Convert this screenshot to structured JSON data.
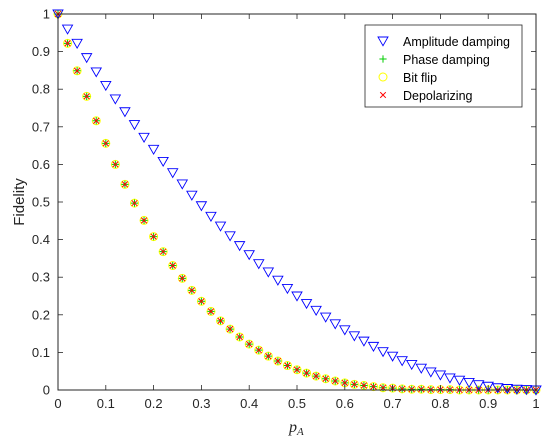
{
  "chart_data": {
    "type": "scatter",
    "title": "",
    "xlabel": "p",
    "xlabel_sub": "A",
    "ylabel": "Fidelity",
    "xlim": [
      0,
      1
    ],
    "ylim": [
      0,
      1
    ],
    "xticks": [
      "0",
      "0.1",
      "0.2",
      "0.3",
      "0.4",
      "0.5",
      "0.6",
      "0.7",
      "0.8",
      "0.9",
      "1"
    ],
    "yticks": [
      "0",
      "0.1",
      "0.2",
      "0.3",
      "0.4",
      "0.5",
      "0.6",
      "0.7",
      "0.8",
      "0.9",
      "1"
    ],
    "grid": false,
    "legend_position": "top-right",
    "x": [
      0,
      0.02,
      0.04,
      0.06,
      0.08,
      0.1,
      0.12,
      0.14,
      0.16,
      0.18,
      0.2,
      0.22,
      0.24,
      0.26,
      0.28,
      0.3,
      0.32,
      0.34,
      0.36,
      0.38,
      0.4,
      0.42,
      0.44,
      0.46,
      0.48,
      0.5,
      0.52,
      0.54,
      0.56,
      0.58,
      0.6,
      0.62,
      0.64,
      0.66,
      0.68,
      0.7,
      0.72,
      0.74,
      0.76,
      0.78,
      0.8,
      0.82,
      0.84,
      0.86,
      0.88,
      0.9,
      0.92,
      0.94,
      0.96,
      0.98,
      1
    ],
    "series": [
      {
        "name": "Amplitude damping",
        "marker": "triangle-down",
        "color": "#0000ff",
        "values": [
          1,
          0.96,
          0.922,
          0.884,
          0.846,
          0.81,
          0.774,
          0.74,
          0.706,
          0.672,
          0.64,
          0.608,
          0.578,
          0.548,
          0.518,
          0.49,
          0.462,
          0.436,
          0.41,
          0.384,
          0.36,
          0.336,
          0.314,
          0.292,
          0.27,
          0.25,
          0.23,
          0.212,
          0.194,
          0.176,
          0.16,
          0.144,
          0.13,
          0.116,
          0.102,
          0.09,
          0.078,
          0.068,
          0.058,
          0.048,
          0.04,
          0.032,
          0.026,
          0.02,
          0.014,
          0.01,
          0.006,
          0.004,
          0.002,
          0.001,
          0
        ]
      },
      {
        "name": "Phase damping",
        "marker": "plus",
        "color": "#00cc00",
        "values": [
          1,
          0.922,
          0.849,
          0.781,
          0.716,
          0.656,
          0.6,
          0.547,
          0.497,
          0.451,
          0.408,
          0.368,
          0.331,
          0.297,
          0.265,
          0.236,
          0.209,
          0.184,
          0.162,
          0.141,
          0.122,
          0.106,
          0.09,
          0.077,
          0.065,
          0.054,
          0.045,
          0.037,
          0.03,
          0.024,
          0.019,
          0.015,
          0.012,
          0.009,
          0.006,
          0.005,
          0.003,
          0.002,
          0.002,
          0.001,
          0.001,
          0.001,
          0,
          0,
          0,
          0,
          0,
          0,
          0,
          0,
          0
        ]
      },
      {
        "name": "Bit flip",
        "marker": "circle",
        "color": "#ffff00",
        "values": [
          1,
          0.922,
          0.849,
          0.781,
          0.716,
          0.656,
          0.6,
          0.547,
          0.497,
          0.451,
          0.408,
          0.368,
          0.331,
          0.297,
          0.265,
          0.236,
          0.209,
          0.184,
          0.162,
          0.141,
          0.122,
          0.106,
          0.09,
          0.077,
          0.065,
          0.054,
          0.045,
          0.037,
          0.03,
          0.024,
          0.019,
          0.015,
          0.012,
          0.009,
          0.006,
          0.005,
          0.003,
          0.002,
          0.002,
          0.001,
          0.001,
          0.001,
          0,
          0,
          0,
          0,
          0,
          0,
          0,
          0,
          0
        ]
      },
      {
        "name": "Depolarizing",
        "marker": "cross",
        "color": "#ff0000",
        "values": [
          1,
          0.922,
          0.849,
          0.781,
          0.716,
          0.656,
          0.6,
          0.547,
          0.497,
          0.451,
          0.408,
          0.368,
          0.331,
          0.297,
          0.265,
          0.236,
          0.209,
          0.184,
          0.162,
          0.141,
          0.122,
          0.106,
          0.09,
          0.077,
          0.065,
          0.054,
          0.045,
          0.037,
          0.03,
          0.024,
          0.019,
          0.015,
          0.012,
          0.009,
          0.006,
          0.005,
          0.003,
          0.002,
          0.002,
          0.001,
          0.001,
          0.001,
          0,
          0,
          0,
          0,
          0,
          0,
          0,
          0,
          0
        ]
      }
    ]
  }
}
